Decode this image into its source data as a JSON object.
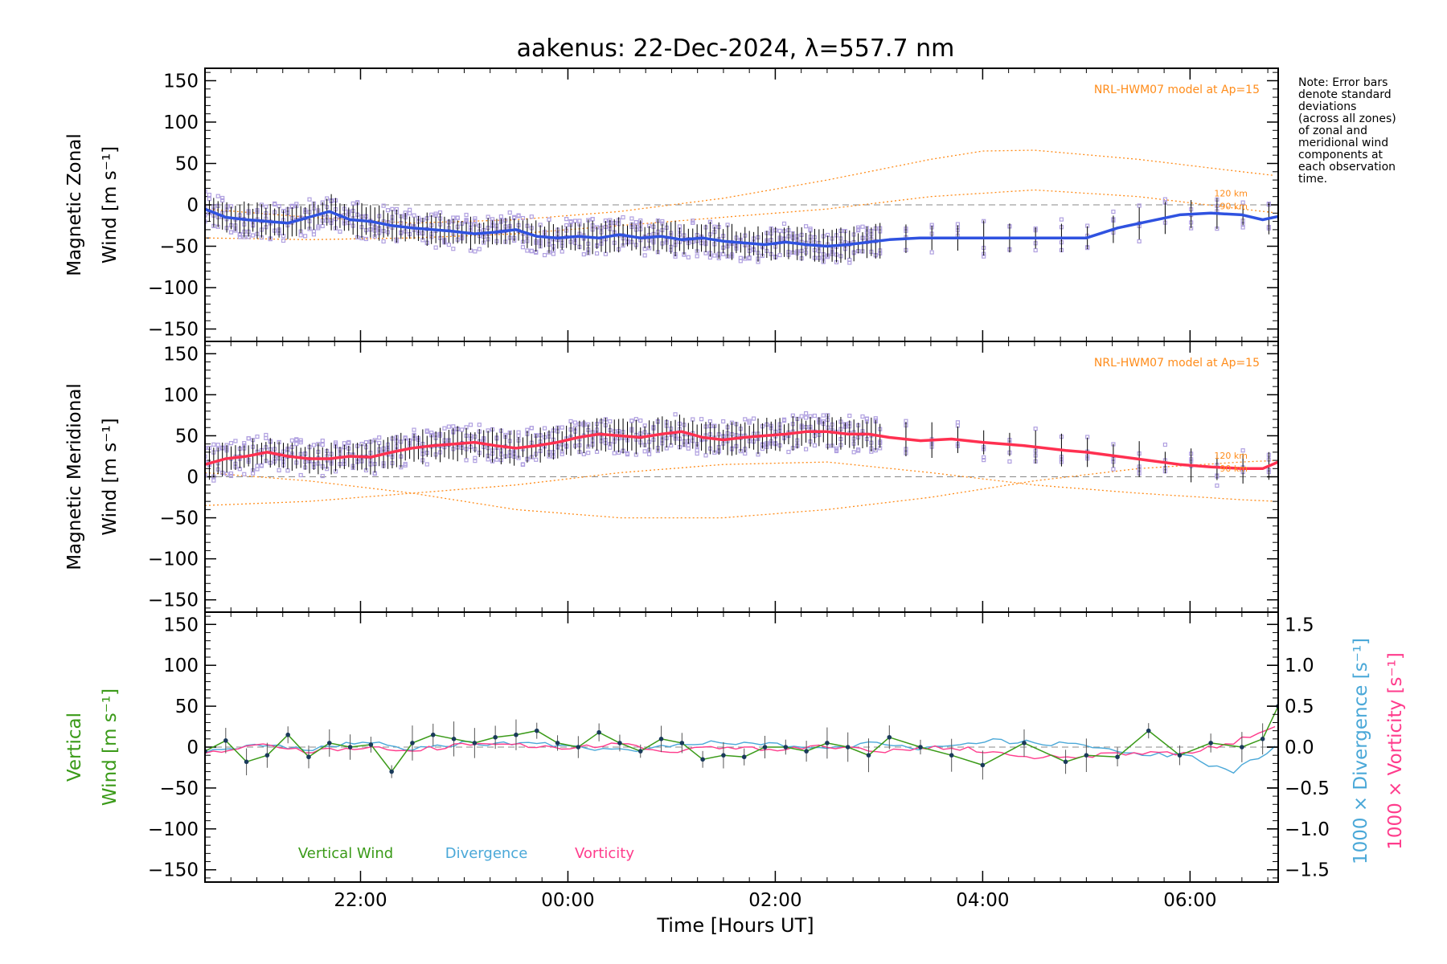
{
  "title": "aakenus: 22-Dec-2024, λ=557.7 nm",
  "note": [
    "Note: Error bars",
    "denote standard",
    "deviations",
    "(across all zones)",
    "of zonal and",
    "meridional wind",
    "components at",
    "each observation",
    "time."
  ],
  "xaxis": {
    "label": "Time [Hours UT]",
    "range_hours": [
      20.5,
      30.85
    ],
    "ticks": [
      {
        "v": 22,
        "label": "22:00"
      },
      {
        "v": 24,
        "label": "00:00"
      },
      {
        "v": 26,
        "label": "02:00"
      },
      {
        "v": 28,
        "label": "04:00"
      },
      {
        "v": 30,
        "label": "06:00"
      }
    ]
  },
  "colors": {
    "axis": "#000000",
    "zonal": "#2f52e0",
    "meridional": "#ff3050",
    "model": "#ff8c1a",
    "zone_points": "#b0a0e0",
    "error_bar": "#000000",
    "vertical": "#3a9a18",
    "divergence": "#4aa8d8",
    "vorticity": "#ff3c8c",
    "reference": "#888888"
  },
  "chart_data": [
    {
      "type": "line",
      "panel": "zonal",
      "ylabel_lines": [
        "Magnetic Zonal",
        "Wind [m s⁻¹]"
      ],
      "ylim": [
        -165,
        165
      ],
      "yticks": [
        {
          "v": 150,
          "label": "150"
        },
        {
          "v": 100,
          "label": "100"
        },
        {
          "v": 50,
          "label": "50"
        },
        {
          "v": 0,
          "label": "0"
        },
        {
          "v": -50,
          "label": "−50"
        },
        {
          "v": -100,
          "label": "−100"
        },
        {
          "v": -150,
          "label": "−150"
        }
      ],
      "model_label": "NRL-HWM07 model at Ap=15",
      "model_heights": [
        "120 km",
        "90 km"
      ],
      "series": [
        {
          "name": "zonal",
          "x": [
            20.5,
            20.7,
            20.9,
            21.1,
            21.3,
            21.5,
            21.7,
            21.9,
            22.1,
            22.3,
            22.5,
            22.7,
            22.9,
            23.1,
            23.3,
            23.5,
            23.7,
            23.9,
            24.1,
            24.3,
            24.5,
            24.7,
            24.9,
            25.1,
            25.3,
            25.5,
            25.7,
            25.9,
            26.1,
            26.3,
            26.5,
            26.7,
            26.9,
            27.1,
            27.4,
            27.7,
            28.0,
            28.4,
            28.8,
            29.0,
            29.3,
            29.6,
            29.9,
            30.2,
            30.5,
            30.7,
            30.85
          ],
          "y": [
            -5,
            -15,
            -18,
            -20,
            -22,
            -15,
            -8,
            -18,
            -20,
            -25,
            -28,
            -30,
            -32,
            -35,
            -33,
            -30,
            -38,
            -40,
            -38,
            -40,
            -36,
            -40,
            -38,
            -42,
            -40,
            -44,
            -46,
            -48,
            -45,
            -48,
            -50,
            -48,
            -45,
            -42,
            -40,
            -40,
            -40,
            -40,
            -40,
            -40,
            -28,
            -20,
            -12,
            -10,
            -12,
            -18,
            -14
          ]
        },
        {
          "name": "model_1",
          "x": [
            20.5,
            21.5,
            22.5,
            23.5,
            24.5,
            25.5,
            26.5,
            27.5,
            28.0,
            28.5,
            29.5,
            30.5,
            30.85
          ],
          "y": [
            -5,
            -15,
            -22,
            -18,
            -8,
            8,
            30,
            55,
            65,
            66,
            55,
            40,
            35
          ]
        },
        {
          "name": "model_2",
          "x": [
            20.5,
            21.5,
            22.5,
            23.5,
            24.5,
            25.5,
            26.5,
            27.5,
            28.5,
            29.5,
            30.5,
            30.85
          ],
          "y": [
            -40,
            -42,
            -40,
            -35,
            -25,
            -15,
            -5,
            10,
            18,
            10,
            -5,
            -10
          ]
        }
      ]
    },
    {
      "type": "line",
      "panel": "meridional",
      "ylabel_lines": [
        "Magnetic Meridional",
        "Wind [m s⁻¹]"
      ],
      "ylim": [
        -165,
        165
      ],
      "yticks": [
        {
          "v": 150,
          "label": "150"
        },
        {
          "v": 100,
          "label": "100"
        },
        {
          "v": 50,
          "label": "50"
        },
        {
          "v": 0,
          "label": "0"
        },
        {
          "v": -50,
          "label": "−50"
        },
        {
          "v": -100,
          "label": "−100"
        },
        {
          "v": -150,
          "label": "−150"
        }
      ],
      "model_label": "NRL-HWM07 model at Ap=15",
      "model_heights": [
        "120 km",
        "90 km"
      ],
      "series": [
        {
          "name": "meridional",
          "x": [
            20.5,
            20.7,
            20.9,
            21.1,
            21.3,
            21.5,
            21.7,
            21.9,
            22.1,
            22.3,
            22.5,
            22.7,
            22.9,
            23.1,
            23.3,
            23.5,
            23.7,
            23.9,
            24.1,
            24.3,
            24.5,
            24.7,
            24.9,
            25.1,
            25.3,
            25.5,
            25.7,
            25.9,
            26.1,
            26.3,
            26.5,
            26.7,
            26.9,
            27.1,
            27.4,
            27.7,
            28.0,
            28.4,
            28.8,
            29.0,
            29.3,
            29.6,
            29.9,
            30.2,
            30.5,
            30.7,
            30.85
          ],
          "y": [
            15,
            22,
            25,
            30,
            25,
            22,
            22,
            25,
            24,
            30,
            35,
            38,
            40,
            42,
            38,
            35,
            38,
            42,
            48,
            52,
            50,
            48,
            52,
            55,
            48,
            45,
            48,
            50,
            52,
            55,
            55,
            52,
            52,
            48,
            44,
            46,
            42,
            38,
            32,
            30,
            25,
            20,
            15,
            12,
            10,
            10,
            18
          ]
        },
        {
          "name": "model_1",
          "x": [
            20.5,
            21.5,
            22.5,
            23.5,
            24.5,
            25.5,
            26.5,
            27.5,
            28.5,
            29.5,
            30.5,
            30.85
          ],
          "y": [
            -35,
            -30,
            -20,
            -10,
            5,
            15,
            18,
            5,
            -10,
            -20,
            -28,
            -30
          ]
        },
        {
          "name": "model_2",
          "x": [
            20.5,
            21.5,
            22.5,
            23.5,
            24.5,
            25.5,
            26.5,
            27.5,
            28.5,
            29.5,
            30.5,
            30.85
          ],
          "y": [
            5,
            -5,
            -20,
            -40,
            -50,
            -50,
            -40,
            -25,
            -5,
            10,
            18,
            20
          ]
        }
      ]
    },
    {
      "type": "line",
      "panel": "vertical",
      "ylabel_lines": [
        "Vertical",
        "Wind [m s⁻¹]"
      ],
      "ylim": [
        -165,
        165
      ],
      "y2lim": [
        -1.65,
        1.65
      ],
      "yticks": [
        {
          "v": 150,
          "label": "150"
        },
        {
          "v": 100,
          "label": "100"
        },
        {
          "v": 50,
          "label": "50"
        },
        {
          "v": 0,
          "label": "0"
        },
        {
          "v": -50,
          "label": "−50"
        },
        {
          "v": -100,
          "label": "−100"
        },
        {
          "v": -150,
          "label": "−150"
        }
      ],
      "y2ticks": [
        {
          "v": 1.5,
          "label": "1.5"
        },
        {
          "v": 1.0,
          "label": "1.0"
        },
        {
          "v": 0.5,
          "label": "0.5"
        },
        {
          "v": 0.0,
          "label": "0.0"
        },
        {
          "v": -0.5,
          "label": "−0.5"
        },
        {
          "v": -1.0,
          "label": "−1.0"
        },
        {
          "v": -1.5,
          "label": "−1.5"
        }
      ],
      "y2label_div": "1000 × Divergence [s⁻¹]",
      "y2label_vort": "1000 × Vorticity [s⁻¹]",
      "legend": [
        "Vertical Wind",
        "Divergence",
        "Vorticity"
      ],
      "series": [
        {
          "name": "Vertical Wind",
          "x": [
            20.5,
            20.7,
            20.9,
            21.1,
            21.3,
            21.5,
            21.7,
            21.9,
            22.1,
            22.3,
            22.5,
            22.7,
            22.9,
            23.1,
            23.3,
            23.5,
            23.7,
            23.9,
            24.1,
            24.3,
            24.5,
            24.7,
            24.9,
            25.1,
            25.3,
            25.5,
            25.7,
            25.9,
            26.1,
            26.3,
            26.5,
            26.7,
            26.9,
            27.1,
            27.4,
            27.7,
            28.0,
            28.4,
            28.8,
            29.0,
            29.3,
            29.6,
            29.9,
            30.2,
            30.5,
            30.7,
            30.85
          ],
          "y": [
            -5,
            8,
            -18,
            -10,
            15,
            -12,
            5,
            0,
            3,
            -30,
            5,
            15,
            10,
            5,
            12,
            15,
            20,
            5,
            0,
            18,
            5,
            -5,
            10,
            5,
            -15,
            -10,
            -12,
            0,
            0,
            -5,
            5,
            0,
            -10,
            12,
            0,
            -10,
            -22,
            5,
            -18,
            -10,
            -12,
            20,
            -10,
            5,
            0,
            10,
            50
          ]
        },
        {
          "name": "Divergence",
          "x": [
            20.5,
            21.0,
            21.5,
            22.0,
            22.5,
            23.0,
            23.5,
            24.0,
            24.5,
            25.0,
            25.5,
            26.0,
            26.5,
            27.0,
            27.5,
            28.0,
            28.5,
            29.0,
            29.5,
            30.0,
            30.4,
            30.85
          ],
          "y": [
            -0.05,
            0.03,
            -0.04,
            0.06,
            -0.02,
            0.05,
            0.04,
            0.02,
            -0.05,
            0.03,
            0.06,
            0.02,
            -0.03,
            0.05,
            -0.02,
            0.08,
            0.05,
            0.02,
            -0.08,
            -0.12,
            -0.32,
            0.02
          ]
        },
        {
          "name": "Vorticity",
          "x": [
            20.5,
            21.0,
            21.5,
            22.0,
            22.5,
            23.0,
            23.5,
            24.0,
            24.5,
            25.0,
            25.5,
            26.0,
            26.5,
            27.0,
            27.5,
            28.0,
            28.5,
            29.0,
            29.5,
            30.0,
            30.4,
            30.85
          ],
          "y": [
            -0.08,
            0.02,
            -0.05,
            0.0,
            -0.03,
            0.02,
            0.04,
            -0.02,
            0.03,
            -0.05,
            0.01,
            -0.04,
            0.02,
            -0.06,
            0.0,
            -0.04,
            -0.12,
            -0.1,
            -0.08,
            -0.06,
            0.05,
            0.25
          ]
        }
      ]
    }
  ]
}
